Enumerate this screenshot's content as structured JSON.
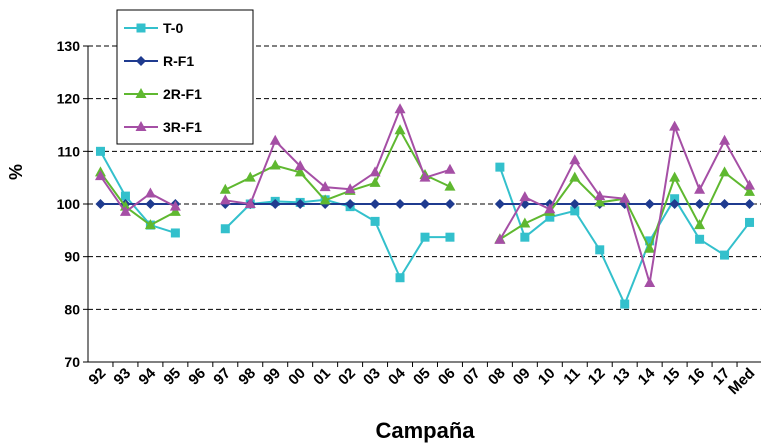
{
  "chart_data": {
    "type": "line",
    "x_label": "Campaña",
    "y_label": "%",
    "categories": [
      "92",
      "93",
      "94",
      "95",
      "96",
      "97",
      "98",
      "99",
      "00",
      "01",
      "02",
      "03",
      "04",
      "05",
      "06",
      "07",
      "08",
      "09",
      "10",
      "11",
      "12",
      "13",
      "14",
      "15",
      "16",
      "17",
      "Med"
    ],
    "ylim": [
      70,
      130
    ],
    "yticks": [
      70,
      80,
      90,
      100,
      110,
      120,
      130
    ],
    "grid": true,
    "legend": "upper left",
    "series": [
      {
        "name": "T-0",
        "color": "#33c0cc",
        "marker": "square",
        "values": [
          110,
          101.5,
          96,
          94.5,
          null,
          95.3,
          100,
          100.5,
          100.3,
          100.8,
          99.5,
          96.7,
          86,
          93.7,
          93.7,
          null,
          107,
          93.7,
          97.5,
          98.7,
          91.3,
          81,
          93,
          101,
          93.3,
          90.3,
          96.5
        ]
      },
      {
        "name": "R-F1",
        "color": "#1f3b8f",
        "marker": "diamond",
        "values": [
          100,
          100,
          100,
          100,
          null,
          100,
          100,
          100,
          100,
          100,
          100,
          100,
          100,
          100,
          100,
          null,
          100,
          100,
          100,
          100,
          100,
          100,
          100,
          100,
          100,
          100,
          100
        ]
      },
      {
        "name": "2R-F1",
        "color": "#5fb830",
        "marker": "triangle",
        "values": [
          106,
          99.5,
          96,
          98.5,
          null,
          102.7,
          105,
          107.3,
          106,
          100.7,
          102.5,
          104,
          114,
          105.5,
          103.3,
          null,
          93.3,
          96.3,
          98.5,
          105,
          100.3,
          101,
          91.5,
          105,
          96,
          106,
          102.3
        ]
      },
      {
        "name": "3R-F1",
        "color": "#a54fa5",
        "marker": "triangle",
        "values": [
          105.3,
          98.5,
          102,
          99.5,
          null,
          100.7,
          100,
          112,
          107.2,
          103.2,
          102.8,
          106,
          118,
          105,
          106.5,
          null,
          93.2,
          101.3,
          99,
          108.3,
          101.5,
          101,
          85,
          114.7,
          102.7,
          112,
          103.5
        ]
      }
    ]
  }
}
